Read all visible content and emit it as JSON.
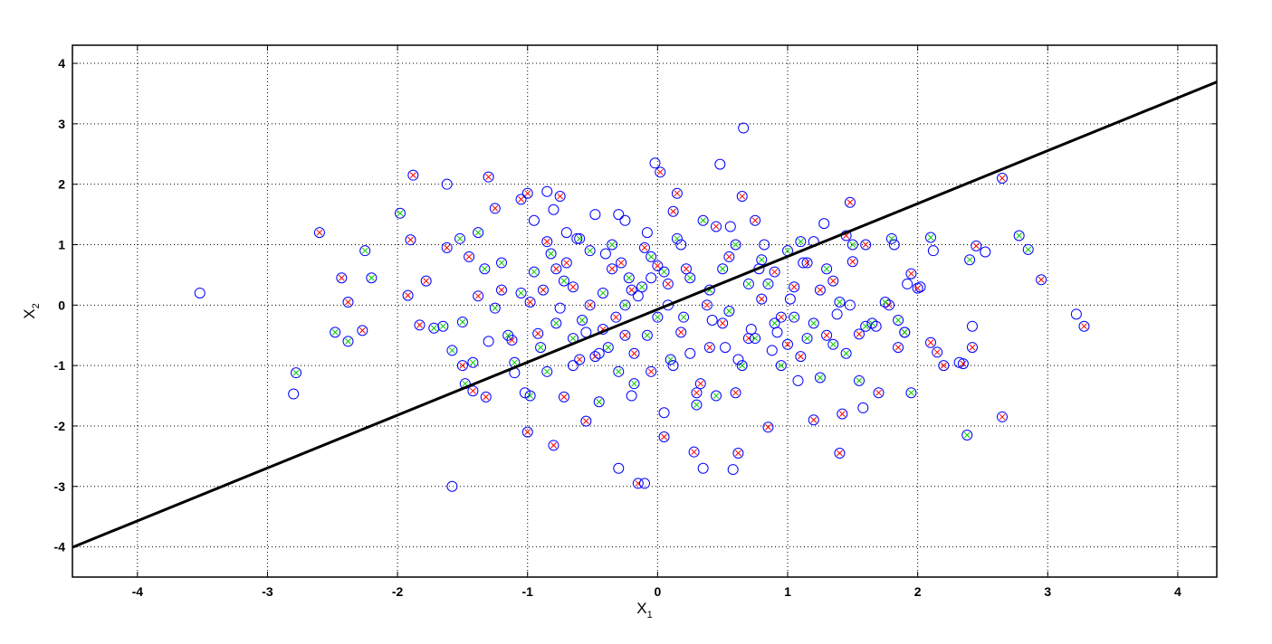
{
  "chart_data": {
    "type": "scatter",
    "title": "",
    "xlabel": "X",
    "xlabel_sub": "1",
    "ylabel": "X",
    "ylabel_sub": "2",
    "xlim": [
      -4.5,
      4.3
    ],
    "ylim": [
      -4.5,
      4.3
    ],
    "xticks": [
      -4,
      -3,
      -2,
      -1,
      0,
      1,
      2,
      3,
      4
    ],
    "yticks": [
      -4,
      -3,
      -2,
      -1,
      0,
      1,
      2,
      3,
      4
    ],
    "grid": true,
    "grid_style": "dotted",
    "colors": {
      "circle": "#0000ff",
      "cross_red": "#ff0000",
      "cross_green": "#00cc00",
      "line": "#000000"
    },
    "decision_line": {
      "slope": 0.875,
      "intercept": -0.07
    },
    "series": [
      {
        "marker": "circle-red-x",
        "points": [
          [
            -2.6,
            1.2
          ],
          [
            -2.43,
            0.45
          ],
          [
            -2.38,
            0.05
          ],
          [
            -2.27,
            -0.42
          ],
          [
            -1.92,
            0.16
          ],
          [
            -1.9,
            1.08
          ],
          [
            -1.88,
            2.15
          ],
          [
            -1.83,
            -0.33
          ],
          [
            -1.78,
            0.4
          ],
          [
            -1.62,
            0.95
          ],
          [
            -1.5,
            -1.0
          ],
          [
            -1.45,
            0.8
          ],
          [
            -1.42,
            -1.42
          ],
          [
            -1.38,
            0.15
          ],
          [
            -1.32,
            -1.52
          ],
          [
            -1.3,
            2.12
          ],
          [
            -1.25,
            1.6
          ],
          [
            -1.2,
            0.25
          ],
          [
            -1.12,
            -0.58
          ],
          [
            -1.05,
            1.75
          ],
          [
            -1.0,
            1.85
          ],
          [
            -1.0,
            -2.1
          ],
          [
            -0.98,
            0.05
          ],
          [
            -0.92,
            -0.47
          ],
          [
            -0.88,
            0.25
          ],
          [
            -0.85,
            1.05
          ],
          [
            -0.8,
            -2.32
          ],
          [
            -0.78,
            0.6
          ],
          [
            -0.75,
            1.8
          ],
          [
            -0.72,
            -1.52
          ],
          [
            -0.7,
            0.7
          ],
          [
            -0.65,
            0.3
          ],
          [
            -0.6,
            -0.9
          ],
          [
            -0.55,
            -1.92
          ],
          [
            -0.52,
            0.0
          ],
          [
            -0.48,
            -0.85
          ],
          [
            -0.42,
            -0.4
          ],
          [
            -0.35,
            0.6
          ],
          [
            -0.32,
            -0.2
          ],
          [
            -0.28,
            0.7
          ],
          [
            -0.25,
            -0.5
          ],
          [
            -0.2,
            0.25
          ],
          [
            -0.18,
            -0.8
          ],
          [
            -0.15,
            -2.95
          ],
          [
            -0.1,
            0.95
          ],
          [
            -0.05,
            -1.1
          ],
          [
            0.0,
            0.65
          ],
          [
            0.02,
            2.2
          ],
          [
            0.05,
            -2.18
          ],
          [
            0.08,
            0.35
          ],
          [
            0.12,
            1.55
          ],
          [
            0.15,
            1.85
          ],
          [
            0.18,
            -0.45
          ],
          [
            0.22,
            0.6
          ],
          [
            0.28,
            -2.43
          ],
          [
            0.3,
            -1.45
          ],
          [
            0.33,
            -1.3
          ],
          [
            0.38,
            0.0
          ],
          [
            0.4,
            -0.7
          ],
          [
            0.45,
            1.3
          ],
          [
            0.5,
            -0.3
          ],
          [
            0.55,
            0.8
          ],
          [
            0.6,
            -1.45
          ],
          [
            0.62,
            -2.45
          ],
          [
            0.65,
            1.8
          ],
          [
            0.7,
            -0.55
          ],
          [
            0.75,
            1.4
          ],
          [
            0.8,
            0.1
          ],
          [
            0.85,
            -2.02
          ],
          [
            0.9,
            0.55
          ],
          [
            0.95,
            -0.2
          ],
          [
            1.0,
            -0.65
          ],
          [
            1.05,
            0.3
          ],
          [
            1.1,
            -0.85
          ],
          [
            1.15,
            0.7
          ],
          [
            1.2,
            -1.9
          ],
          [
            1.25,
            0.25
          ],
          [
            1.3,
            -0.5
          ],
          [
            1.35,
            0.4
          ],
          [
            1.4,
            -2.45
          ],
          [
            1.42,
            -1.8
          ],
          [
            1.45,
            1.15
          ],
          [
            1.48,
            1.7
          ],
          [
            1.5,
            0.72
          ],
          [
            1.55,
            -0.48
          ],
          [
            1.6,
            1.0
          ],
          [
            1.7,
            -1.45
          ],
          [
            1.78,
            0.0
          ],
          [
            1.85,
            -0.7
          ],
          [
            1.9,
            -0.45
          ],
          [
            1.95,
            0.52
          ],
          [
            2.0,
            0.28
          ],
          [
            2.1,
            -0.62
          ],
          [
            2.15,
            -0.78
          ],
          [
            2.2,
            -1.0
          ],
          [
            2.35,
            -0.97
          ],
          [
            2.42,
            -0.7
          ],
          [
            2.45,
            0.98
          ],
          [
            2.65,
            2.1
          ],
          [
            2.65,
            -1.85
          ],
          [
            2.95,
            0.42
          ],
          [
            3.28,
            -0.35
          ]
        ]
      },
      {
        "marker": "circle-green-x",
        "points": [
          [
            -2.78,
            -1.12
          ],
          [
            -2.48,
            -0.45
          ],
          [
            -2.38,
            -0.6
          ],
          [
            -2.25,
            0.9
          ],
          [
            -2.2,
            0.45
          ],
          [
            -1.98,
            1.52
          ],
          [
            -1.72,
            -0.38
          ],
          [
            -1.65,
            -0.35
          ],
          [
            -1.58,
            -0.75
          ],
          [
            -1.52,
            1.1
          ],
          [
            -1.5,
            -0.28
          ],
          [
            -1.48,
            -1.3
          ],
          [
            -1.42,
            -0.95
          ],
          [
            -1.38,
            1.2
          ],
          [
            -1.33,
            0.6
          ],
          [
            -1.25,
            -0.05
          ],
          [
            -1.2,
            0.7
          ],
          [
            -1.15,
            -0.5
          ],
          [
            -1.1,
            -0.95
          ],
          [
            -1.05,
            0.2
          ],
          [
            -0.98,
            -1.5
          ],
          [
            -0.95,
            0.55
          ],
          [
            -0.9,
            -0.7
          ],
          [
            -0.85,
            -1.1
          ],
          [
            -0.82,
            0.85
          ],
          [
            -0.78,
            -0.3
          ],
          [
            -0.72,
            0.4
          ],
          [
            -0.65,
            -0.55
          ],
          [
            -0.6,
            1.1
          ],
          [
            -0.58,
            -0.25
          ],
          [
            -0.52,
            0.9
          ],
          [
            -0.45,
            -1.6
          ],
          [
            -0.42,
            0.2
          ],
          [
            -0.38,
            -0.7
          ],
          [
            -0.35,
            1.0
          ],
          [
            -0.3,
            -1.1
          ],
          [
            -0.25,
            0.0
          ],
          [
            -0.22,
            0.45
          ],
          [
            -0.18,
            -1.3
          ],
          [
            -0.12,
            0.3
          ],
          [
            -0.08,
            -0.5
          ],
          [
            -0.05,
            0.8
          ],
          [
            0.0,
            -0.2
          ],
          [
            0.05,
            0.55
          ],
          [
            0.1,
            -0.9
          ],
          [
            0.15,
            1.1
          ],
          [
            0.2,
            -0.2
          ],
          [
            0.25,
            0.45
          ],
          [
            0.3,
            -1.65
          ],
          [
            0.35,
            1.4
          ],
          [
            0.4,
            0.25
          ],
          [
            0.45,
            -1.5
          ],
          [
            0.5,
            0.6
          ],
          [
            0.55,
            -0.1
          ],
          [
            0.6,
            1.0
          ],
          [
            0.65,
            -1.0
          ],
          [
            0.7,
            0.35
          ],
          [
            0.75,
            -0.55
          ],
          [
            0.8,
            0.75
          ],
          [
            0.85,
            0.35
          ],
          [
            0.9,
            -0.3
          ],
          [
            0.95,
            -1.0
          ],
          [
            1.0,
            0.9
          ],
          [
            1.05,
            -0.2
          ],
          [
            1.1,
            1.05
          ],
          [
            1.15,
            -0.55
          ],
          [
            1.2,
            -0.3
          ],
          [
            1.25,
            -1.2
          ],
          [
            1.3,
            0.6
          ],
          [
            1.35,
            -0.65
          ],
          [
            1.4,
            0.05
          ],
          [
            1.45,
            -0.8
          ],
          [
            1.5,
            1.0
          ],
          [
            1.55,
            -1.25
          ],
          [
            1.6,
            -0.35
          ],
          [
            1.65,
            -0.3
          ],
          [
            1.75,
            0.05
          ],
          [
            1.8,
            1.1
          ],
          [
            1.85,
            -0.25
          ],
          [
            1.9,
            -0.45
          ],
          [
            1.95,
            -1.45
          ],
          [
            2.1,
            1.12
          ],
          [
            2.38,
            -2.15
          ],
          [
            2.4,
            0.75
          ],
          [
            2.78,
            1.15
          ],
          [
            2.85,
            0.92
          ]
        ]
      },
      {
        "marker": "circle",
        "points": [
          [
            -3.52,
            0.2
          ],
          [
            -2.8,
            -1.47
          ],
          [
            -1.62,
            2.0
          ],
          [
            -1.58,
            -3.0
          ],
          [
            -1.3,
            -0.6
          ],
          [
            -1.1,
            -1.12
          ],
          [
            -1.02,
            -1.45
          ],
          [
            -0.95,
            1.4
          ],
          [
            -0.85,
            1.88
          ],
          [
            -0.8,
            1.58
          ],
          [
            -0.75,
            -0.05
          ],
          [
            -0.7,
            1.2
          ],
          [
            -0.65,
            -1.0
          ],
          [
            -0.62,
            1.1
          ],
          [
            -0.55,
            -0.45
          ],
          [
            -0.48,
            1.5
          ],
          [
            -0.45,
            -0.8
          ],
          [
            -0.4,
            0.85
          ],
          [
            -0.3,
            1.5
          ],
          [
            -0.3,
            -2.7
          ],
          [
            -0.25,
            1.4
          ],
          [
            -0.2,
            -1.5
          ],
          [
            -0.15,
            0.15
          ],
          [
            -0.1,
            -2.95
          ],
          [
            -0.08,
            1.2
          ],
          [
            -0.05,
            0.45
          ],
          [
            -0.02,
            2.35
          ],
          [
            0.05,
            -1.78
          ],
          [
            0.08,
            0.0
          ],
          [
            0.12,
            -1.0
          ],
          [
            0.18,
            1.0
          ],
          [
            0.25,
            -0.8
          ],
          [
            0.35,
            -2.7
          ],
          [
            0.42,
            -0.25
          ],
          [
            0.48,
            2.33
          ],
          [
            0.52,
            -0.7
          ],
          [
            0.56,
            1.3
          ],
          [
            0.58,
            -2.72
          ],
          [
            0.62,
            -0.9
          ],
          [
            0.66,
            2.93
          ],
          [
            0.72,
            -0.4
          ],
          [
            0.78,
            0.6
          ],
          [
            0.82,
            1.0
          ],
          [
            0.88,
            -0.75
          ],
          [
            0.92,
            -0.45
          ],
          [
            1.02,
            0.1
          ],
          [
            1.08,
            -1.25
          ],
          [
            1.12,
            0.7
          ],
          [
            1.2,
            1.05
          ],
          [
            1.28,
            1.35
          ],
          [
            1.38,
            -0.15
          ],
          [
            1.48,
            0.0
          ],
          [
            1.58,
            -1.7
          ],
          [
            1.68,
            -0.35
          ],
          [
            1.82,
            1.0
          ],
          [
            1.92,
            0.35
          ],
          [
            2.02,
            0.3
          ],
          [
            2.12,
            0.9
          ],
          [
            2.32,
            -0.95
          ],
          [
            2.42,
            -0.35
          ],
          [
            2.52,
            0.88
          ],
          [
            3.22,
            -0.15
          ]
        ]
      }
    ]
  }
}
